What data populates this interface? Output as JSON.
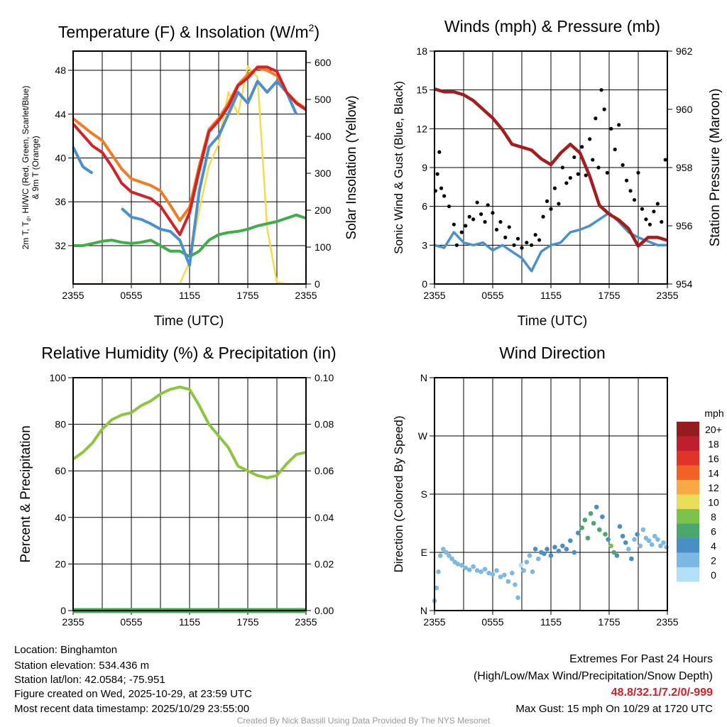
{
  "chart_data": [
    {
      "type": "line",
      "title": "Temperature (F) & Insolation (W/m",
      "title_sup": "2",
      "title_end": ")",
      "xlabel": "Time (UTC)",
      "ylabel_line1_a": "2m T, T",
      "ylabel_line1_sub": "d",
      "ylabel_line1_b": ", HI/WC (Red, Green, Scarlet/Blue)",
      "ylabel_line2": "& 9m T (Orange)",
      "y2label": "Solar Insolation (Yellow)",
      "xticks": [
        "2355",
        "0555",
        "1155",
        "1755",
        "2355"
      ],
      "yticks": [
        32,
        36,
        40,
        44,
        48
      ],
      "y2ticks": [
        0,
        100,
        200,
        300,
        400,
        500,
        600
      ],
      "ylim": [
        28.5,
        49.75
      ],
      "y2lim": [
        0,
        631
      ],
      "x_hours": [
        0,
        1,
        2,
        3,
        4,
        5,
        6,
        7,
        8,
        9,
        10,
        11,
        12,
        13,
        14,
        15,
        16,
        17,
        18,
        19,
        20,
        21,
        22,
        23,
        24
      ],
      "series": [
        {
          "name": "9m T",
          "color": "#f47b20",
          "axis": "left",
          "values": [
            43.6,
            42.9,
            42.2,
            41.6,
            40.3,
            39.0,
            38.1,
            37.8,
            37.5,
            37.0,
            35.7,
            34.3,
            35.5,
            39.3,
            42.6,
            43.6,
            45.0,
            46.7,
            47.6,
            48.2,
            48.0,
            47.5,
            46.0,
            45.1,
            44.5
          ]
        },
        {
          "name": "2m T",
          "color": "#d42027",
          "axis": "left",
          "values": [
            43.1,
            42.1,
            41.1,
            40.5,
            39.2,
            37.7,
            36.9,
            36.6,
            36.3,
            35.6,
            34.3,
            33.0,
            35.0,
            38.9,
            42.4,
            43.4,
            44.7,
            46.6,
            47.3,
            48.3,
            48.3,
            47.9,
            46.0,
            45.0,
            44.4
          ]
        },
        {
          "name": "HI/WC",
          "color": "#4a90cd",
          "axis": "left",
          "values": [
            41.0,
            39.2,
            38.6,
            null,
            null,
            35.4,
            34.6,
            34.4,
            34.0,
            33.5,
            33.3,
            32.5,
            30.2,
            37.0,
            41.0,
            42.0,
            44.0,
            46.0,
            45.0,
            47.0,
            46.0,
            47.0,
            46.0,
            44.0,
            null
          ]
        },
        {
          "name": "Td",
          "color": "#3fae49",
          "axis": "left",
          "values": [
            32.0,
            32.0,
            32.2,
            32.4,
            32.5,
            32.3,
            32.2,
            32.3,
            32.5,
            32.0,
            31.5,
            31.5,
            31.0,
            31.5,
            32.5,
            33.0,
            33.2,
            33.3,
            33.5,
            33.8,
            34.0,
            34.2,
            34.5,
            34.8,
            34.5
          ]
        },
        {
          "name": "Solar",
          "color": "#f7dc4a",
          "axis": "right",
          "values": [
            0,
            0,
            0,
            0,
            0,
            0,
            0,
            0,
            0,
            0,
            0,
            0,
            60,
            200,
            320,
            380,
            520,
            460,
            590,
            560,
            150,
            5,
            0,
            0,
            0
          ]
        }
      ]
    },
    {
      "type": "line+scatter",
      "title": "Winds (mph) & Pressure (mb)",
      "xlabel": "Time (UTC)",
      "ylabel": "Sonic Wind & Gust (Blue, Black)",
      "y2label": "Station Pressure (Maroon)",
      "xticks": [
        "2355",
        "0555",
        "1155",
        "1755",
        "2355"
      ],
      "yticks": [
        0,
        3,
        6,
        9,
        12,
        15,
        18
      ],
      "y2ticks": [
        954,
        956,
        958,
        960,
        962
      ],
      "ylim": [
        0,
        18
      ],
      "y2lim": [
        954,
        962
      ],
      "x_hours": [
        0,
        1,
        2,
        3,
        4,
        5,
        6,
        7,
        8,
        9,
        10,
        11,
        12,
        13,
        14,
        15,
        16,
        17,
        18,
        19,
        20,
        21,
        22,
        23,
        24
      ],
      "wind": [
        3.0,
        2.8,
        4.0,
        3.2,
        3.0,
        3.2,
        2.6,
        3.0,
        2.5,
        2.0,
        1.0,
        2.5,
        3.0,
        3.2,
        4.0,
        4.2,
        4.5,
        5.0,
        5.5,
        4.8,
        4.0,
        3.6,
        3.3,
        3.0,
        3.0
      ],
      "pressure": [
        960.7,
        960.6,
        960.6,
        960.5,
        960.3,
        960.0,
        959.7,
        959.3,
        958.8,
        958.7,
        958.6,
        958.3,
        958.1,
        958.5,
        958.8,
        958.5,
        957.7,
        956.7,
        956.4,
        956.2,
        955.9,
        955.3,
        955.6,
        955.6,
        955.5
      ],
      "gust_hours": [
        0.1,
        0.3,
        0.5,
        0.7,
        1.0,
        1.5,
        2.0,
        2.3,
        2.8,
        3.2,
        3.6,
        4.0,
        4.4,
        4.8,
        5.2,
        5.5,
        6.0,
        6.4,
        6.8,
        7.3,
        7.7,
        8.2,
        8.6,
        9.0,
        9.5,
        10.0,
        10.4,
        10.8,
        11.2,
        11.6,
        12.0,
        12.4,
        12.8,
        13.2,
        13.6,
        14.0,
        14.4,
        14.8,
        15.2,
        15.6,
        16.0,
        16.3,
        16.6,
        16.9,
        17.2,
        17.5,
        17.8,
        18.2,
        18.6,
        19.0,
        19.4,
        19.8,
        20.2,
        20.6,
        21.0,
        21.4,
        21.8,
        22.2,
        22.6,
        23.0,
        23.4,
        23.8
      ],
      "gusts": [
        7.2,
        8.5,
        10.2,
        7.4,
        6.8,
        6.0,
        4.6,
        3.0,
        4.0,
        4.5,
        5.2,
        5.0,
        6.3,
        5.4,
        4.8,
        6.1,
        5.5,
        4.2,
        4.8,
        3.6,
        4.4,
        3.0,
        3.5,
        2.8,
        3.2,
        3.0,
        3.8,
        3.4,
        5.2,
        6.4,
        5.8,
        7.4,
        6.2,
        9.0,
        7.8,
        8.2,
        9.8,
        8.5,
        10.6,
        8.4,
        11.2,
        9.6,
        12.8,
        9.0,
        15.0,
        13.5,
        8.6,
        12.0,
        10.4,
        12.3,
        9.2,
        8.0,
        7.2,
        6.5,
        8.6,
        5.8,
        5.0,
        4.6,
        5.6,
        6.2,
        4.8,
        9.6
      ]
    },
    {
      "type": "line",
      "title": "Relative Humidity (%) & Precipitation (in)",
      "ylabel": "Percent & Precipitation",
      "xticks": [
        "2355",
        "0555",
        "1155",
        "1755",
        "2355"
      ],
      "yticks": [
        0,
        20,
        40,
        60,
        80,
        100
      ],
      "y2ticks": [
        "0.00",
        "0.02",
        "0.04",
        "0.06",
        "0.08",
        "0.10"
      ],
      "ylim": [
        0,
        100
      ],
      "y2lim": [
        0,
        0.1
      ],
      "x_hours": [
        0,
        1,
        2,
        3,
        4,
        5,
        6,
        7,
        8,
        9,
        10,
        11,
        12,
        13,
        14,
        15,
        16,
        17,
        18,
        19,
        20,
        21,
        22,
        23,
        24
      ],
      "rh": [
        65,
        68,
        72,
        78,
        82,
        84,
        85,
        88,
        90,
        93,
        95,
        96,
        95,
        88,
        80,
        75,
        70,
        62,
        60,
        58,
        57,
        58,
        63,
        67,
        68
      ],
      "precip": [
        0,
        0,
        0,
        0,
        0,
        0,
        0,
        0,
        0,
        0,
        0,
        0,
        0,
        0,
        0,
        0,
        0,
        0,
        0,
        0,
        0,
        0,
        0,
        0,
        0
      ]
    },
    {
      "type": "scatter",
      "title": "Wind Direction",
      "ylabel": "Direction (Colored By Speed)",
      "xticks": [
        "2355",
        "0555",
        "1155",
        "1755",
        "2355"
      ],
      "yticks": [
        "N",
        "E",
        "S",
        "W",
        "N"
      ],
      "ylim": [
        0,
        360
      ],
      "hours": [
        0.0,
        0.2,
        0.4,
        0.6,
        0.9,
        1.2,
        1.5,
        1.8,
        2.1,
        2.4,
        2.8,
        3.2,
        3.6,
        4.0,
        4.4,
        4.8,
        5.2,
        5.6,
        6.0,
        6.4,
        6.8,
        7.2,
        7.6,
        8.0,
        8.3,
        8.6,
        8.9,
        9.2,
        9.5,
        9.8,
        10.1,
        10.4,
        10.7,
        11.0,
        11.3,
        11.6,
        12.0,
        12.4,
        12.8,
        13.2,
        13.6,
        14.0,
        14.4,
        14.8,
        15.2,
        15.5,
        15.8,
        16.1,
        16.4,
        16.7,
        17.0,
        17.3,
        17.6,
        17.9,
        18.2,
        18.5,
        18.8,
        19.1,
        19.4,
        19.7,
        20.0,
        20.3,
        20.6,
        20.9,
        21.2,
        21.5,
        21.8,
        22.1,
        22.4,
        22.7,
        23.0,
        23.3,
        23.6,
        23.9
      ],
      "direction": [
        15,
        35,
        60,
        85,
        95,
        90,
        85,
        80,
        75,
        72,
        70,
        66,
        63,
        68,
        62,
        60,
        64,
        58,
        56,
        62,
        52,
        55,
        45,
        58,
        40,
        20,
        70,
        62,
        75,
        85,
        60,
        95,
        80,
        90,
        88,
        95,
        85,
        98,
        92,
        100,
        95,
        108,
        90,
        120,
        128,
        140,
        112,
        150,
        135,
        160,
        125,
        145,
        118,
        110,
        100,
        90,
        85,
        130,
        115,
        105,
        95,
        80,
        110,
        118,
        100,
        125,
        112,
        108,
        102,
        115,
        110,
        100,
        105,
        98
      ],
      "speed": [
        2,
        2,
        2,
        2,
        2,
        2,
        2,
        2,
        2,
        2,
        2,
        2,
        2,
        2,
        2,
        2,
        2,
        2,
        2,
        2,
        2,
        2,
        2,
        1,
        1,
        1,
        0,
        2,
        1,
        2,
        2,
        4,
        2,
        4,
        4,
        4,
        4,
        4,
        4,
        4,
        4,
        4,
        4,
        4,
        6,
        6,
        6,
        6,
        6,
        4,
        6,
        4,
        6,
        4,
        8,
        6,
        4,
        4,
        4,
        4,
        2,
        4,
        2,
        4,
        2,
        2,
        2,
        2,
        2,
        2,
        2,
        2,
        2,
        2
      ],
      "legend_title": "mph",
      "legend_labels": [
        "20+",
        "18",
        "16",
        "14",
        "12",
        "10",
        "8",
        "6",
        "4",
        "2",
        "0"
      ],
      "legend_colors": [
        "#961b1e",
        "#bf1e2d",
        "#e0342b",
        "#f26228",
        "#f8a945",
        "#e8de5a",
        "#7dc24b",
        "#4aa86f",
        "#4a8ec6",
        "#7cb8e4",
        "#b4e0f7"
      ]
    }
  ],
  "info": {
    "location": "Location: Binghamton",
    "elevation": "Station elevation: 534.436 m",
    "latlon": "Station lat/lon: 42.0584; -75.951",
    "created": "Figure created on Wed, 2025-10-29, at 23:59 UTC",
    "recent": "Most recent data timestamp: 2025/10/29 23:55:00"
  },
  "extremes": {
    "title": "Extremes For Past 24 Hours",
    "subtitle": "(High/Low/Max Wind/Precipitation/Snow Depth)",
    "values": "48.8/32.1/7.2/0/-999",
    "gust": "Max Gust: 15 mph On 10/29 at 1720 UTC"
  },
  "credit": "Created By Nick Bassill Using Data Provided By The NYS Mesonet",
  "colors": {
    "rh": "#8cc63f",
    "precip": "#3fae49",
    "pressure": "#a51c1c",
    "wind": "#4a90cd",
    "gust": "#000000",
    "extreme": "#d42027"
  }
}
